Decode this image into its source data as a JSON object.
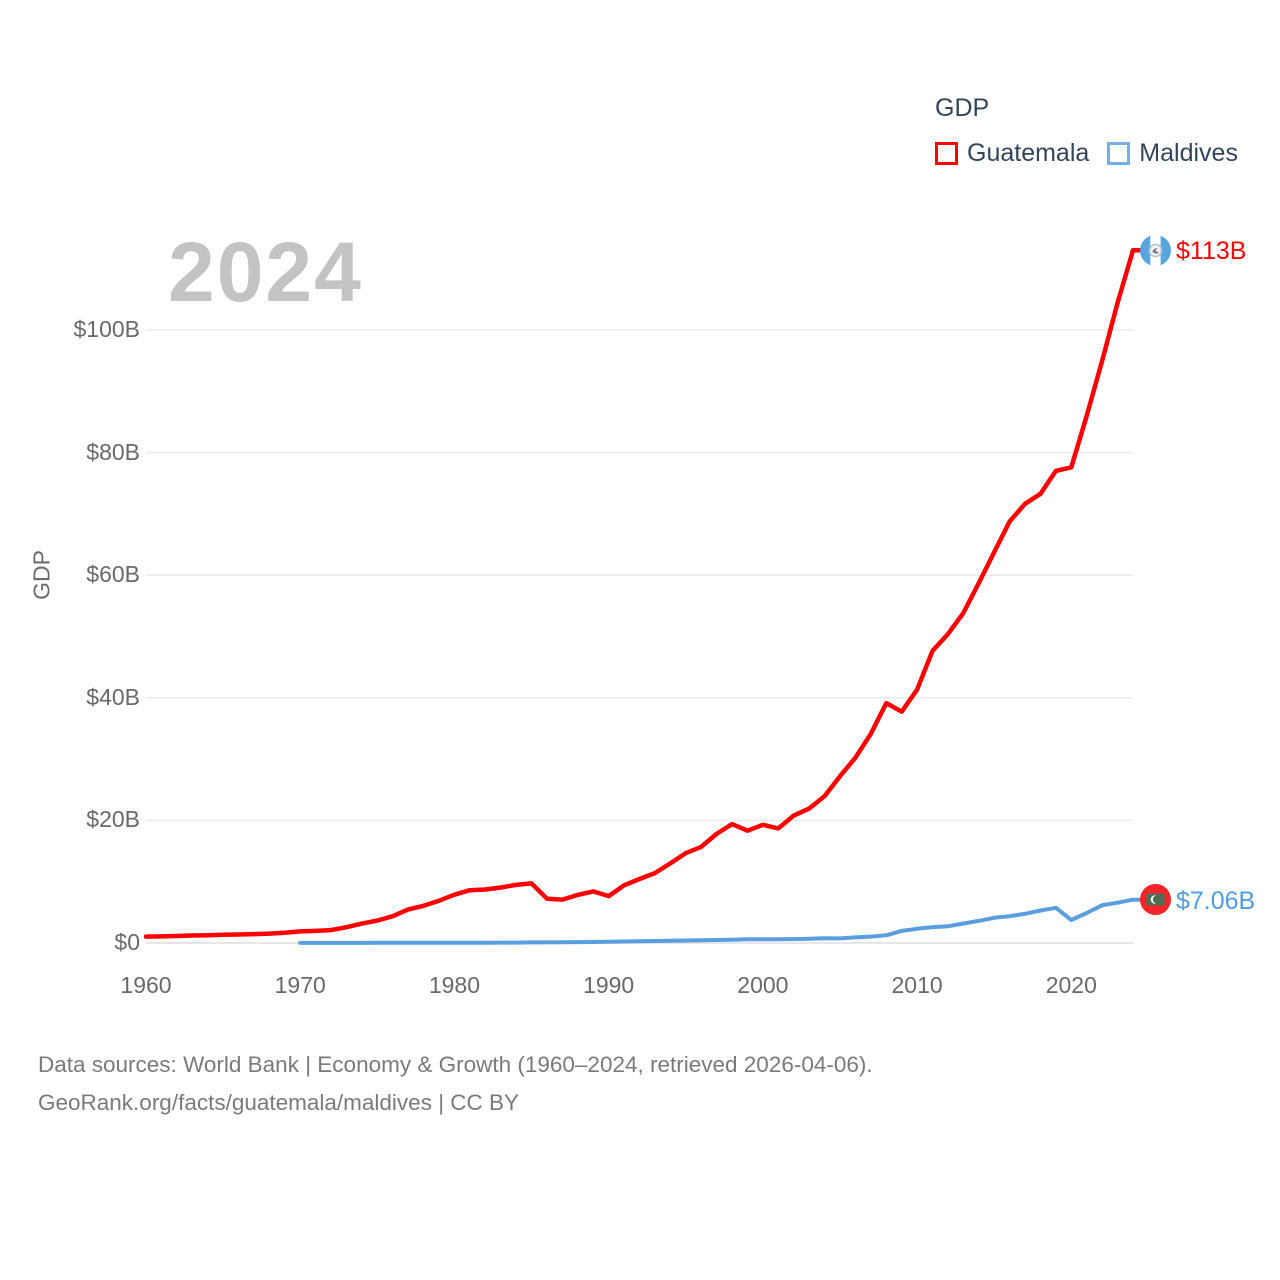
{
  "watermark": {
    "text": "2024"
  },
  "legend": {
    "title": "GDP",
    "series": [
      {
        "label": "Guatemala",
        "box_color": "#ff0000"
      },
      {
        "label": "Maldives",
        "box_color": "#79afe5"
      }
    ]
  },
  "axis": {
    "y_label": "GDP"
  },
  "end_labels": {
    "guatemala": "$113B",
    "maldives": "$7.06B"
  },
  "icons": {
    "guatemala_flag": "guatemala-flag-icon",
    "maldives_flag": "maldives-flag-icon"
  },
  "footer": {
    "line1": "Data sources: World Bank | Economy & Growth (1960–2024, retrieved 2026-04-06).",
    "line2": "GeoRank.org/facts/guatemala/maldives | CC BY"
  },
  "chart_data": {
    "type": "line",
    "title": "GDP",
    "ylabel": "GDP",
    "xlim": [
      1960,
      2024
    ],
    "ylim": [
      0,
      113
    ],
    "grid": "horizontal",
    "legend_position": "top-right",
    "y_ticks": [
      0,
      20,
      40,
      60,
      80,
      100
    ],
    "y_tick_labels": [
      "$0",
      "$20B",
      "$40B",
      "$60B",
      "$80B",
      "$100B"
    ],
    "x_ticks": [
      1960,
      1970,
      1980,
      1990,
      2000,
      2010,
      2020
    ],
    "x": [
      1960,
      1961,
      1962,
      1963,
      1964,
      1965,
      1966,
      1967,
      1968,
      1969,
      1970,
      1971,
      1972,
      1973,
      1974,
      1975,
      1976,
      1977,
      1978,
      1979,
      1980,
      1981,
      1982,
      1983,
      1984,
      1985,
      1986,
      1987,
      1988,
      1989,
      1990,
      1991,
      1992,
      1993,
      1994,
      1995,
      1996,
      1997,
      1998,
      1999,
      2000,
      2001,
      2002,
      2003,
      2004,
      2005,
      2006,
      2007,
      2008,
      2009,
      2010,
      2011,
      2012,
      2013,
      2014,
      2015,
      2016,
      2017,
      2018,
      2019,
      2020,
      2021,
      2022,
      2023,
      2024
    ],
    "series": [
      {
        "name": "Guatemala",
        "color": "#ff0000",
        "width": 4.5,
        "start_year": 1960,
        "end_value_label": "$113B",
        "values": [
          1.04,
          1.08,
          1.14,
          1.22,
          1.28,
          1.33,
          1.39,
          1.45,
          1.53,
          1.66,
          1.9,
          1.98,
          2.1,
          2.57,
          3.16,
          3.65,
          4.37,
          5.48,
          6.07,
          6.9,
          7.88,
          8.61,
          8.72,
          9.05,
          9.47,
          9.72,
          7.23,
          7.08,
          7.84,
          8.41,
          7.65,
          9.41,
          10.44,
          11.4,
          12.98,
          14.66,
          15.67,
          17.79,
          19.4,
          18.32,
          19.29,
          18.7,
          20.78,
          21.92,
          23.97,
          27.21,
          30.23,
          34.11,
          39.14,
          37.73,
          41.34,
          47.65,
          50.39,
          53.85,
          58.72,
          63.77,
          68.76,
          71.65,
          73.28,
          77.02,
          77.6,
          86.0,
          95.0,
          104.45,
          113.0
        ]
      },
      {
        "name": "Maldives",
        "color": "#5b9edf",
        "width": 4,
        "start_year": 1970,
        "end_value_label": "$7.06B",
        "values": [
          0.01,
          0.01,
          0.01,
          0.02,
          0.02,
          0.03,
          0.03,
          0.03,
          0.04,
          0.04,
          0.04,
          0.05,
          0.05,
          0.06,
          0.07,
          0.09,
          0.1,
          0.12,
          0.14,
          0.17,
          0.22,
          0.25,
          0.29,
          0.32,
          0.36,
          0.4,
          0.45,
          0.49,
          0.54,
          0.6,
          0.62,
          0.62,
          0.64,
          0.69,
          0.78,
          0.75,
          0.92,
          1.05,
          1.26,
          1.98,
          2.32,
          2.6,
          2.72,
          3.18,
          3.6,
          4.11,
          4.38,
          4.76,
          5.3,
          5.75,
          3.75,
          4.9,
          6.17,
          6.58,
          7.06
        ]
      }
    ]
  }
}
